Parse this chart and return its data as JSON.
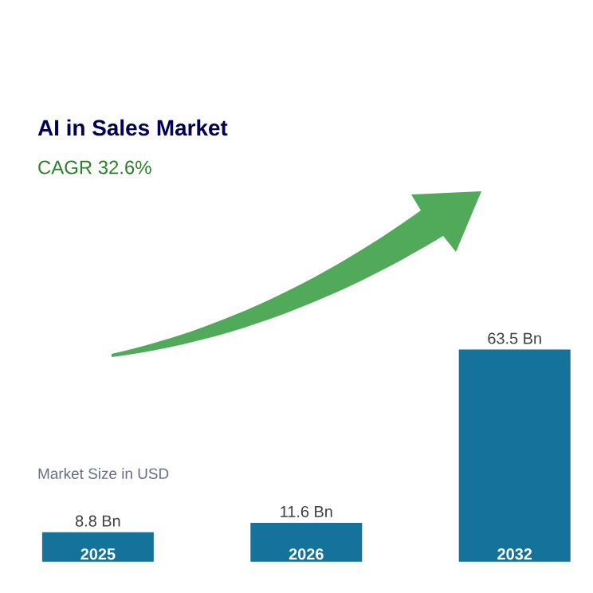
{
  "chart_data": {
    "type": "bar",
    "title": "AI in Sales Market",
    "subtitle": "CAGR 32.6%",
    "categories": [
      "2025",
      "2026",
      "2032"
    ],
    "values": [
      8.8,
      11.6,
      63.5
    ],
    "value_labels": [
      "8.8 Bn",
      "11.6 Bn",
      "63.5 Bn"
    ],
    "color": "#15729a",
    "annotations": [
      "Market Size in USD"
    ]
  }
}
